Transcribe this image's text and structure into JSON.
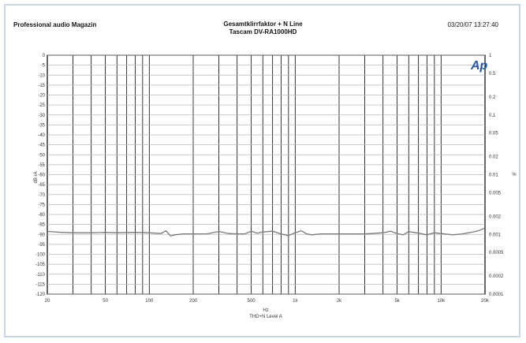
{
  "header": {
    "left": "Professional audio Magazin",
    "title_line1": "Gesamtklirrfaktor + N Line",
    "title_line2": "Tascam DV-RA1000HD",
    "timestamp": "03/20/07 13:27:40"
  },
  "logo_text": "Ap",
  "chart_data": {
    "type": "line",
    "title": "Gesamtklirrfaktor + N Line",
    "subtitle": "Tascam DV-RA1000HD",
    "xlabel": "Hz",
    "xsub": "THD+N Level A",
    "ylabel_left": "dB rA",
    "ylabel_right": "%",
    "xscale": "log",
    "xlim": [
      20,
      20000
    ],
    "ylim_left": [
      -120,
      0
    ],
    "ylim_right": [
      0.0001,
      1
    ],
    "x_ticks": [
      "20",
      "50",
      "100",
      "200",
      "500",
      "1k",
      "2k",
      "5k",
      "10k",
      "20k"
    ],
    "x_tick_values": [
      20,
      50,
      100,
      200,
      500,
      1000,
      2000,
      5000,
      10000,
      20000
    ],
    "y_left_ticks": [
      "0",
      "-5",
      "-10",
      "-15",
      "-20",
      "-25",
      "-30",
      "-35",
      "-40",
      "-45",
      "-50",
      "-55",
      "-60",
      "-65",
      "-70",
      "-75",
      "-80",
      "-85",
      "-90",
      "-95",
      "-100",
      "-105",
      "-110",
      "-115",
      "-120"
    ],
    "y_right_ticks": [
      "1",
      "0.5",
      "0.2",
      "0.1",
      "0.05",
      "0.02",
      "0.01",
      "0.005",
      "0.002",
      "0.001",
      "0.0005",
      "0.0002",
      "0.0001"
    ],
    "grid": true,
    "series": [
      {
        "color": "#7a7a7a",
        "x": [
          20,
          25,
          30,
          40,
          50,
          60,
          80,
          100,
          120,
          130,
          140,
          150,
          170,
          200,
          250,
          300,
          350,
          400,
          450,
          500,
          550,
          600,
          700,
          800,
          900,
          1000,
          1100,
          1200,
          1300,
          1500,
          2000,
          3000,
          4000,
          4500,
          5000,
          5500,
          6000,
          7000,
          8000,
          9000,
          10000,
          12000,
          14000,
          16000,
          18000,
          20000
        ],
        "y": [
          -88.5,
          -89,
          -89.2,
          -89.2,
          -89,
          -89.2,
          -89,
          -89.2,
          -89.6,
          -88.2,
          -90.8,
          -90.2,
          -89.8,
          -89.8,
          -89.7,
          -88.5,
          -89.6,
          -89.8,
          -89.8,
          -88.4,
          -89.4,
          -88.8,
          -88.4,
          -89.8,
          -90.6,
          -89.2,
          -88.2,
          -89.8,
          -90.2,
          -89.8,
          -89.8,
          -89.8,
          -89.2,
          -88.4,
          -89.6,
          -90.2,
          -88.6,
          -89.4,
          -90.2,
          -89.2,
          -89.6,
          -90.2,
          -89.8,
          -89.0,
          -88.2,
          -86.8
        ]
      }
    ]
  }
}
